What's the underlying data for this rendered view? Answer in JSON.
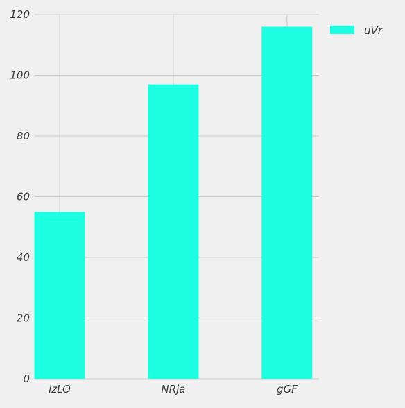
{
  "chart_data": {
    "type": "bar",
    "categories": [
      "izLO",
      "NRja",
      "gGF"
    ],
    "series": [
      {
        "name": "uVr",
        "values": [
          55,
          97,
          116
        ],
        "color": "#1dffe0"
      }
    ],
    "ylim": [
      0,
      120
    ],
    "yticks": [
      0,
      20,
      40,
      60,
      80,
      100,
      120
    ],
    "grid": true,
    "legend_position": "top-right",
    "colors": {
      "background": "#f0f0f0",
      "grid": "#cbcbcb",
      "text": "#3a3a3a"
    }
  }
}
